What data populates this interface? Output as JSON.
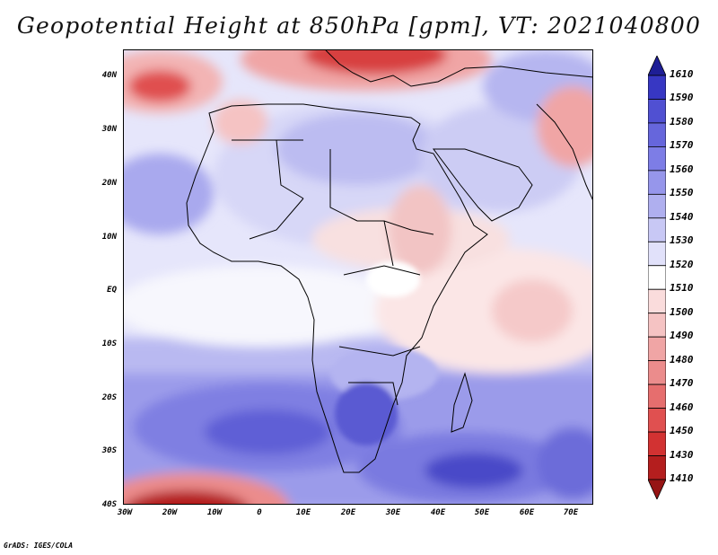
{
  "title": "Geopotential Height at 850hPa [gpm], VT: 2021040800",
  "credit": "GrADS: IGES/COLA",
  "map": {
    "variable": "geopotential height",
    "level": "850hPa",
    "units": "gpm",
    "valid_time": "2021040800",
    "lat_range": [
      -40,
      45
    ],
    "lon_range": [
      -30,
      75
    ],
    "lat_ticks": [
      "40N",
      "30N",
      "20N",
      "10N",
      "EQ",
      "10S",
      "20S",
      "30S",
      "40S"
    ],
    "lon_ticks": [
      "30W",
      "20W",
      "10W",
      "0",
      "10E",
      "20E",
      "30E",
      "40E",
      "50E",
      "60E",
      "70E"
    ]
  },
  "colorbar": {
    "labels": [
      "1610",
      "1590",
      "1580",
      "1570",
      "1560",
      "1550",
      "1540",
      "1530",
      "1520",
      "1510",
      "1500",
      "1490",
      "1480",
      "1470",
      "1460",
      "1450",
      "1430",
      "1410"
    ],
    "colors": [
      "#1e1e96",
      "#3737c3",
      "#5050d2",
      "#6666dc",
      "#7d7de6",
      "#9696eb",
      "#afafef",
      "#c8c8f5",
      "#e1e1fa",
      "#ffffff",
      "#fadcdc",
      "#f5c3c3",
      "#f0a5a5",
      "#eb8c8c",
      "#e66e6e",
      "#e05050",
      "#d23232",
      "#b41e1e",
      "#961414"
    ]
  }
}
